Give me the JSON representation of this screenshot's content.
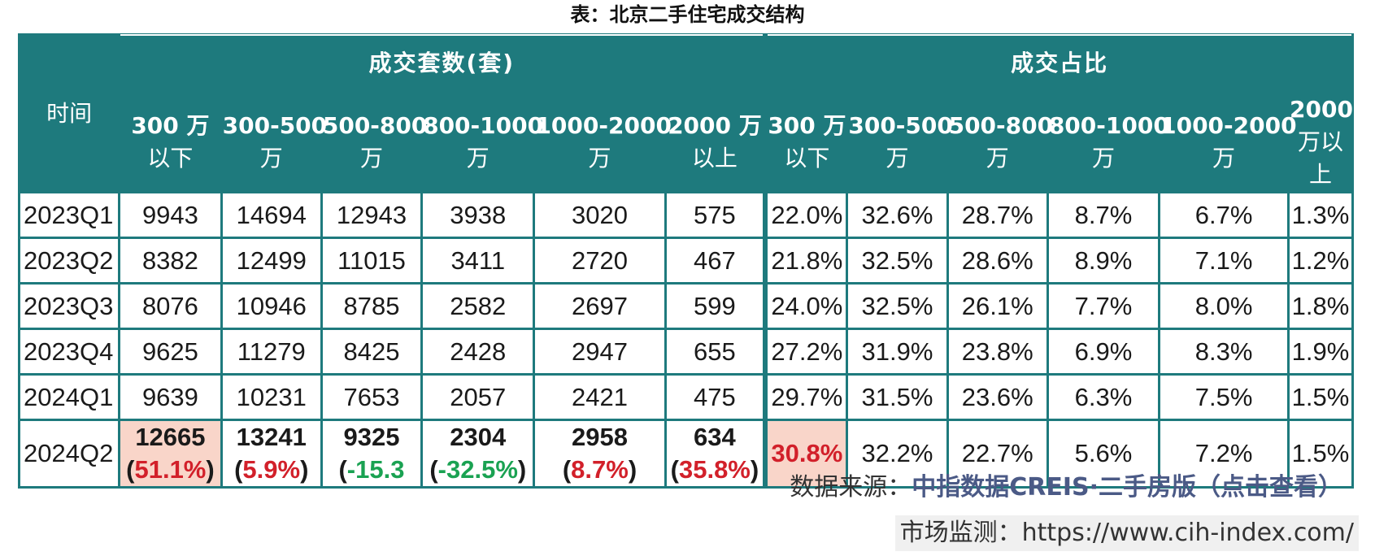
{
  "title": "表：北京二手住宅成交结构",
  "table": {
    "time_header": "时间",
    "group_count": "成交套数(套)",
    "group_share": "成交占比",
    "count_columns": [
      {
        "l1": "300 万",
        "l2": "以下"
      },
      {
        "l1": "300-500",
        "l2": "万"
      },
      {
        "l1": "500-800",
        "l2": "万"
      },
      {
        "l1": "800-1000",
        "l2": "万"
      },
      {
        "l1": "1000-2000",
        "l2": "万"
      },
      {
        "l1": "2000 万",
        "l2": "以上"
      }
    ],
    "share_columns": [
      {
        "l1": "300 万",
        "l2": "以下"
      },
      {
        "l1": "300-500",
        "l2": "万"
      },
      {
        "l1": "500-800",
        "l2": "万"
      },
      {
        "l1": "800-1000",
        "l2": "万"
      },
      {
        "l1": "1000-2000",
        "l2": "万"
      },
      {
        "l1": "2000",
        "l2": "万以",
        "l3": "上"
      }
    ],
    "rows": [
      {
        "period": "2023Q1",
        "counts": [
          "9943",
          "14694",
          "12943",
          "3938",
          "3020",
          "575"
        ],
        "shares": [
          "22.0%",
          "32.6%",
          "28.7%",
          "8.7%",
          "6.7%",
          "1.3%"
        ]
      },
      {
        "period": "2023Q2",
        "counts": [
          "8382",
          "12499",
          "11015",
          "3411",
          "2720",
          "467"
        ],
        "shares": [
          "21.8%",
          "32.5%",
          "28.6%",
          "8.9%",
          "7.1%",
          "1.2%"
        ]
      },
      {
        "period": "2023Q3",
        "counts": [
          "8076",
          "10946",
          "8785",
          "2582",
          "2697",
          "599"
        ],
        "shares": [
          "24.0%",
          "32.5%",
          "26.1%",
          "7.7%",
          "8.0%",
          "1.8%"
        ]
      },
      {
        "period": "2023Q4",
        "counts": [
          "9625",
          "11279",
          "8425",
          "2428",
          "2947",
          "655"
        ],
        "shares": [
          "27.2%",
          "31.9%",
          "23.8%",
          "6.9%",
          "8.3%",
          "1.9%"
        ]
      },
      {
        "period": "2024Q1",
        "counts": [
          "9639",
          "10231",
          "7653",
          "2057",
          "2421",
          "475"
        ],
        "shares": [
          "29.7%",
          "31.5%",
          "23.6%",
          "6.3%",
          "7.5%",
          "1.5%"
        ]
      }
    ],
    "last_row": {
      "period": "2024Q2",
      "counts": [
        "12665",
        "13241",
        "9325",
        "2304",
        "2958",
        "634"
      ],
      "changes": [
        "(51.1%)",
        "(5.9%)",
        "(-15.3",
        "(-32.5%)",
        "(8.7%)",
        "(35.8%)"
      ],
      "changes_open": [
        "(",
        "(",
        "(",
        "(",
        "(",
        "("
      ],
      "changes_value": [
        "51.1%",
        "5.9%",
        "-15.3",
        "-32.5%",
        "8.7%",
        "35.8%"
      ],
      "changes_close": [
        ")",
        ")",
        ")",
        ")",
        ")",
        ")"
      ],
      "change_colors": [
        "#d2202a",
        "#d2202a",
        "#1aa252",
        "#1aa252",
        "#d2202a",
        "#d2202a"
      ],
      "shares": [
        "30.8%",
        "32.2%",
        "22.7%",
        "5.6%",
        "7.2%",
        "1.5%"
      ]
    },
    "colors": {
      "header_bg": "#1e7a7d",
      "highlight_bg": "#f9d5c9",
      "up": "#d2202a",
      "down": "#1aa252"
    }
  },
  "source": {
    "label": "数据来源：",
    "link": "中指数据CREIS·二手房版（点击查看）"
  },
  "monitor": "市场监测：https://www.cih-index.com/"
}
